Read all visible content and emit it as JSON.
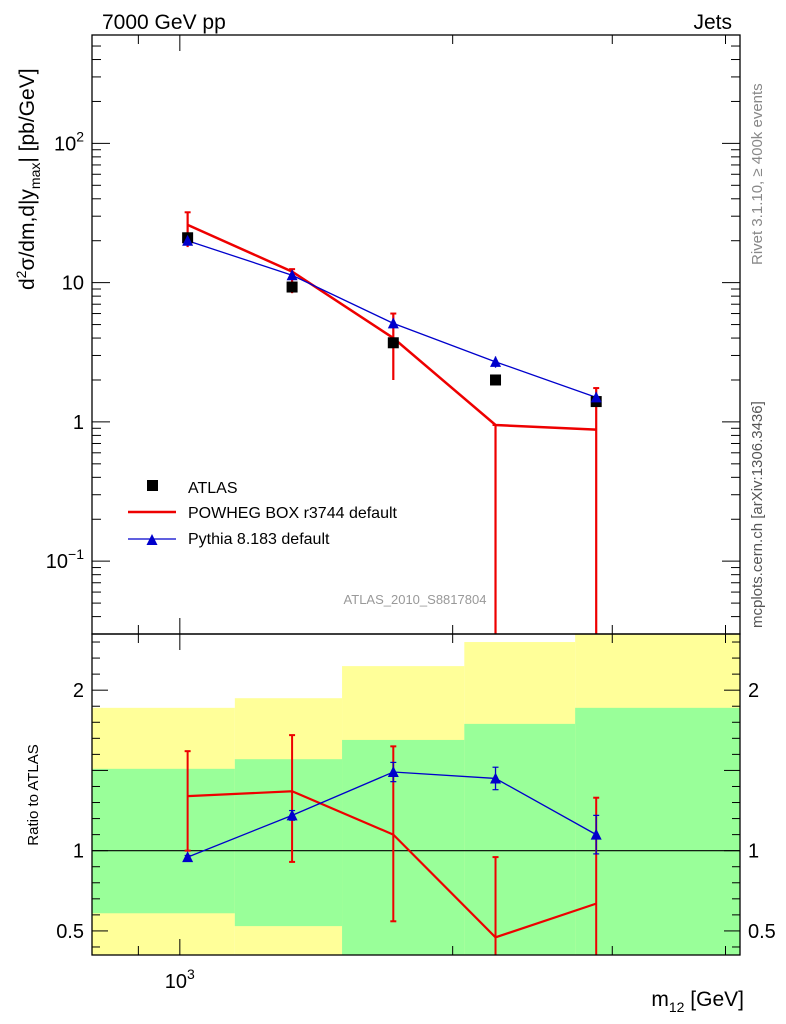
{
  "header": {
    "left": "7000 GeV pp",
    "right": "Jets"
  },
  "side_labels": {
    "rivet": "Rivet 3.1.10, ≥ 400k events",
    "mcplots": "mcplots.cern.ch [arXiv:1306.3436]"
  },
  "chart_data": {
    "type": "scatter",
    "watermark": "ATLAS_2010_S8817804",
    "xlabel": "m12 [GeV]",
    "ylabel_main": "d2σ/dm,d|ymax| [pb/GeV]",
    "ylabel_ratio": "Ratio to ATLAS",
    "x_ticklabel": "10^3",
    "main": {
      "yscale": "log",
      "ylim": [
        0.03,
        600
      ],
      "yticks": [
        {
          "value": 0.1,
          "label": "10^-1"
        },
        {
          "value": 1,
          "label": "1"
        },
        {
          "value": 10,
          "label": "10"
        },
        {
          "value": 100,
          "label": "10^2"
        }
      ]
    },
    "ratio": {
      "ylim": [
        0.35,
        2.35
      ],
      "yticks": [
        {
          "value": 0.5,
          "label": "0.5"
        },
        {
          "value": 1,
          "label": "1"
        },
        {
          "value": 2,
          "label": "2"
        }
      ],
      "bands_inner": [
        {
          "x": [
            800,
            1150
          ],
          "lo": 0.61,
          "hi": 1.51
        },
        {
          "x": [
            1150,
            1510
          ],
          "lo": 0.53,
          "hi": 1.57
        },
        {
          "x": [
            1510,
            2060
          ],
          "lo": 0.35,
          "hi": 1.69
        },
        {
          "x": [
            2060,
            2730
          ],
          "lo": 0.35,
          "hi": 1.79
        },
        {
          "x": [
            2730,
            4150
          ],
          "lo": 0.35,
          "hi": 1.89
        }
      ],
      "bands_outer": [
        {
          "x": [
            800,
            1150
          ],
          "lo": 0.35,
          "hi": 1.89
        },
        {
          "x": [
            1150,
            1510
          ],
          "lo": 0.35,
          "hi": 1.95
        },
        {
          "x": [
            1510,
            2060
          ],
          "lo": 0.35,
          "hi": 2.15
        },
        {
          "x": [
            2060,
            2730
          ],
          "lo": 0.35,
          "hi": 2.3
        },
        {
          "x": [
            2730,
            4150
          ],
          "lo": 0.35,
          "hi": 2.35
        }
      ]
    },
    "x": [
      1020,
      1330,
      1720,
      2230,
      2880
    ],
    "series": [
      {
        "name": "ATLAS",
        "color": "#000000",
        "marker": "square",
        "values": [
          21,
          9.3,
          3.7,
          2.0,
          1.4
        ]
      },
      {
        "name": "POWHEG BOX r3744 default",
        "color": "#ee0000",
        "marker": "none",
        "values": [
          26,
          12.0,
          4.0,
          0.95,
          0.88
        ],
        "err_hi": [
          32,
          12.5,
          6.0,
          0.95,
          1.75
        ],
        "err_lo": [
          18,
          8.4,
          2.0,
          0.001,
          0.001
        ],
        "ratio": [
          1.34,
          1.37,
          1.1,
          0.46,
          0.67
        ],
        "ratio_hi": [
          1.62,
          1.72,
          1.65,
          0.96,
          1.33
        ],
        "ratio_lo": [
          1.0,
          0.93,
          0.56,
          0.35,
          0.35
        ]
      },
      {
        "name": "Pythia 8.183 default",
        "color": "#0000cc",
        "marker": "triangle",
        "values": [
          20,
          11.3,
          5.1,
          2.7,
          1.5
        ],
        "err_hi": [
          21,
          12.0,
          5.5,
          2.95,
          1.62
        ],
        "err_lo": [
          19,
          10.6,
          4.7,
          2.45,
          1.38
        ],
        "ratio": [
          0.96,
          1.22,
          1.49,
          1.45,
          1.1
        ],
        "ratio_hi": [
          0.97,
          1.25,
          1.55,
          1.52,
          1.22
        ],
        "ratio_lo": [
          0.95,
          1.19,
          1.43,
          1.38,
          0.98
        ]
      }
    ]
  }
}
